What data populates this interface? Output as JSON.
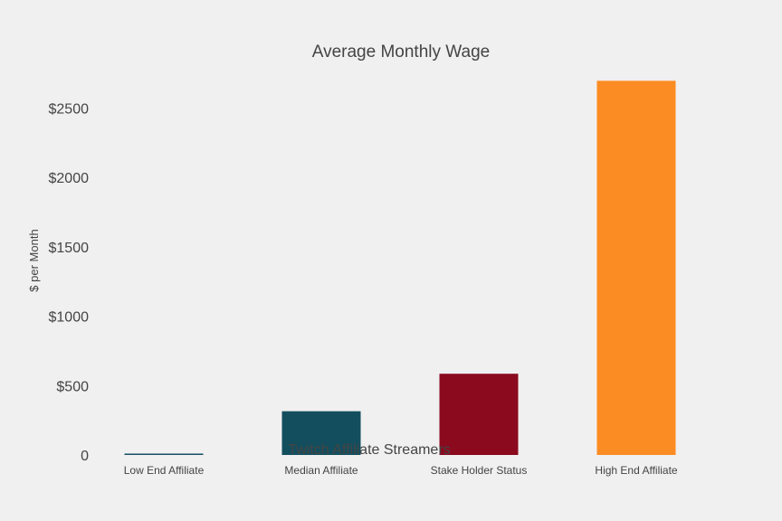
{
  "chart_data": {
    "type": "bar",
    "title": "Average Monthly Wage",
    "xlabel": "Twitch Affiliate Streamers",
    "ylabel": "$ per Month",
    "categories": [
      "Low End Affiliate",
      "Median Affiliate",
      "Stake Holder Status",
      "High End Affiliate"
    ],
    "values": [
      10,
      315,
      585,
      2695
    ],
    "colors": [
      "#1a5068",
      "#134e5e",
      "#8b0a1e",
      "#fb8c24"
    ],
    "ylim": [
      0,
      2700
    ],
    "yticks": [
      0,
      500,
      1000,
      1500,
      2000,
      2500
    ],
    "ytick_labels": [
      "0",
      "$500",
      "$1000",
      "$1500",
      "$2000",
      "$2500"
    ],
    "grid": false,
    "legend": false
  }
}
